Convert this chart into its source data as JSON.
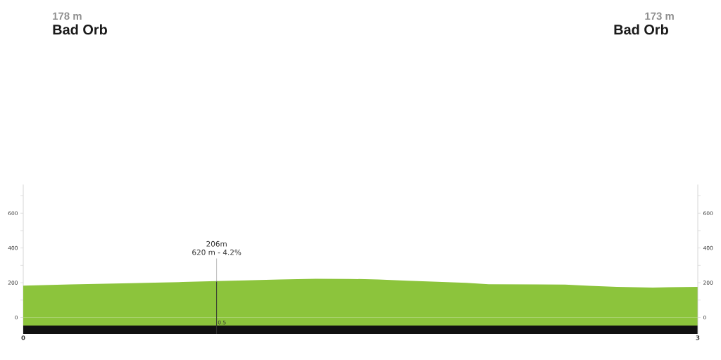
{
  "chart_data": {
    "type": "area",
    "color": "#8cc43c",
    "x": [
      0,
      0.21,
      0.48,
      0.62,
      0.71,
      0.86,
      0.99,
      1.14,
      1.3,
      1.45,
      1.58,
      1.71,
      1.82,
      1.97,
      2.07,
      2.28,
      2.41,
      2.52,
      2.64,
      2.8,
      2.87,
      3
    ],
    "values": [
      183,
      190,
      197,
      201,
      204,
      209,
      214,
      219,
      223,
      222,
      219,
      212,
      206,
      199,
      191,
      190,
      189,
      182,
      176,
      172,
      174,
      176
    ],
    "xlim": [
      0,
      3
    ],
    "xticks": [
      0,
      3
    ],
    "ylim": [
      -95,
      765
    ],
    "yticks": [
      0,
      {
        "value": 100,
        "label": null
      },
      200,
      {
        "value": 300,
        "label": null
      },
      400,
      {
        "value": 500,
        "label": null
      },
      600,
      {
        "value": 700,
        "label": null
      }
    ],
    "y2lim": [
      -95,
      765
    ],
    "y2ticks": [
      0,
      {
        "value": 100,
        "label": null
      },
      200,
      {
        "value": 300,
        "label": null
      },
      400,
      {
        "value": 500,
        "label": null
      },
      600,
      {
        "value": 700,
        "label": null
      }
    ],
    "bands": [
      {
        "axis": "y",
        "from": -95,
        "to": -47,
        "color": "#111111"
      },
      {
        "axis": "y",
        "from": -47,
        "to": 0,
        "color": "#8cc43c"
      }
    ],
    "ref_lines": [
      {
        "axis": "x",
        "value": 0.86,
        "color": "#333333"
      }
    ],
    "annotations": [
      "178 m",
      "Bad Orb",
      "173 m",
      "Bad Orb",
      "206m",
      {
        "text": "620 m - 4.2%",
        "x": 0.86,
        "y": 206
      },
      {
        "text": "0.5",
        "x": 0.86,
        "y": -47
      }
    ]
  }
}
